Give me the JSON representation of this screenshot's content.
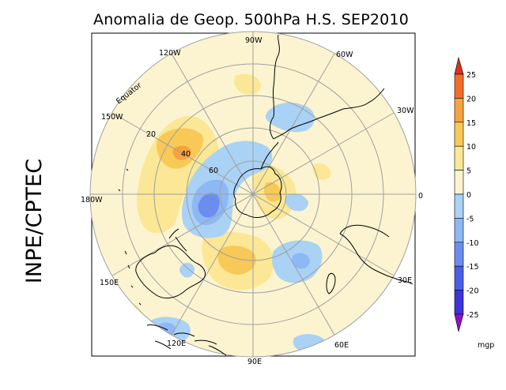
{
  "title": "Anomalia de Geop. 500hPa H.S. SEP2010",
  "side_label": "INPE/CPTEC",
  "longitude_labels": {
    "lon_0": "0",
    "lon_30w": "30W",
    "lon_60w": "60W",
    "lon_90w": "90W",
    "lon_120w": "120W",
    "lon_150w": "150W",
    "lon_180w": "180W",
    "lon_150e": "150E",
    "lon_120e": "120E",
    "lon_90e": "90E",
    "lon_60e": "60E",
    "lon_30e": "30E"
  },
  "latitude_labels": {
    "equator": "Equator",
    "lat_20": "20",
    "lat_40": "40",
    "lat_60": "60"
  },
  "colorbar": {
    "unit": "mgp",
    "levels": [
      "25",
      "20",
      "15",
      "10",
      "5",
      "0",
      "-5",
      "-10",
      "-15",
      "-20",
      "-25"
    ],
    "colors": {
      "gt25": "#e0301e",
      "c20_25": "#f36d2a",
      "c15_20": "#f7a241",
      "c10_15": "#f8c957",
      "c5_10": "#fbe795",
      "c0_5": "#fcf4d0",
      "cm5_0": "#a9d2f5",
      "cm10_m5": "#8db8f3",
      "cm15_m10": "#6a8def",
      "cm20_m15": "#4b5ee8",
      "cm25_m20": "#3d34dc",
      "lt_m25": "#8d10c8"
    }
  },
  "colors": {
    "background": "#fcf4d0",
    "grid": "#a0a0a0",
    "coast": "#000000"
  }
}
